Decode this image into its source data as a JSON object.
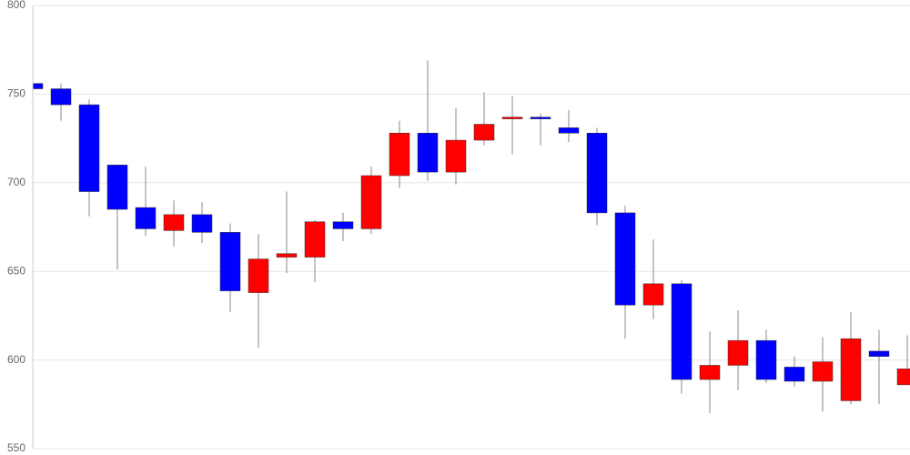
{
  "chart_data": {
    "type": "candlestick",
    "categories": [
      null,
      null,
      null,
      null,
      null,
      null,
      null,
      null,
      null,
      null,
      null,
      null,
      null,
      null,
      null,
      null,
      null,
      null,
      null,
      null,
      null,
      null,
      null,
      null,
      null,
      null,
      null,
      null,
      null,
      null,
      null,
      null
    ],
    "open": [
      756,
      753,
      744,
      710,
      686,
      673,
      682,
      672,
      638,
      658,
      658,
      678,
      674,
      704,
      728,
      706,
      724,
      736,
      737,
      731,
      728,
      683,
      631,
      643,
      589,
      597,
      611,
      596,
      588,
      577,
      605,
      586
    ],
    "high": [
      776,
      756,
      747,
      710,
      709,
      690,
      689,
      677,
      671,
      695,
      679,
      683,
      709,
      735,
      769,
      742,
      751,
      749,
      739,
      741,
      731,
      687,
      668,
      645,
      616,
      628,
      617,
      602,
      613,
      627,
      617,
      614
    ],
    "low": [
      749,
      735,
      681,
      651,
      670,
      664,
      666,
      627,
      607,
      649,
      644,
      667,
      671,
      697,
      701,
      699,
      721,
      716,
      721,
      723,
      676,
      612,
      623,
      581,
      570,
      583,
      587,
      585,
      571,
      575,
      575,
      586
    ],
    "close": [
      753,
      744,
      695,
      685,
      674,
      682,
      672,
      639,
      657,
      660,
      678,
      674,
      704,
      728,
      706,
      724,
      733,
      737,
      736,
      728,
      683,
      631,
      643,
      589,
      597,
      611,
      589,
      588,
      599,
      612,
      602,
      595
    ],
    "up_color": "#ff0000",
    "down_color": "#0000ff",
    "ylim": [
      550,
      800
    ],
    "yticks": [
      550,
      600,
      650,
      700,
      750,
      800
    ],
    "grid": true
  }
}
